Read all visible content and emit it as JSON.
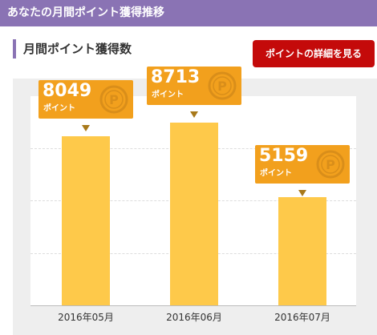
{
  "header": {
    "title": "あなたの月間ポイント獲得推移"
  },
  "section": {
    "title": "月間ポイント獲得数"
  },
  "detail_button": {
    "label": "ポイントの詳細を見る"
  },
  "colors": {
    "header_bg": "#8a73b4",
    "button_bg": "#c40a0a",
    "bar": "#fec94a",
    "callout": "#f2a01d",
    "coin": "#d98e1a"
  },
  "coin_icon": {
    "name": "point-coin-icon",
    "glyph": "P"
  },
  "chart_data": {
    "type": "bar",
    "categories": [
      "2016年05月",
      "2016年06月",
      "2016年07月"
    ],
    "values": [
      8049,
      8713,
      5159
    ],
    "value_labels": [
      "8049",
      "8713",
      "5159"
    ],
    "unit_label": "ポイント",
    "ylim": [
      0,
      10000
    ],
    "grid": true
  }
}
